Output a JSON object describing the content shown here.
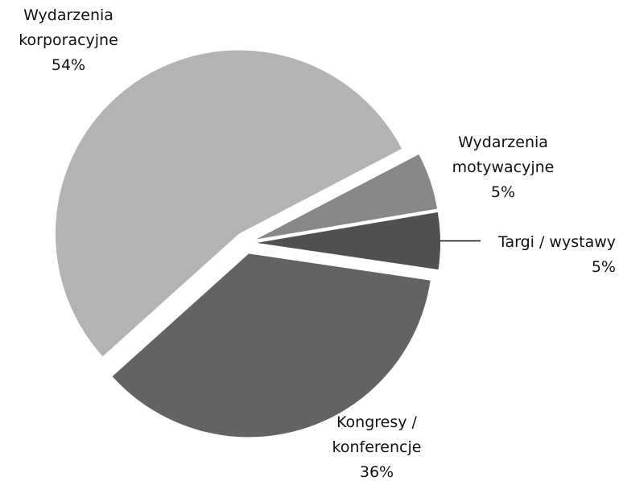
{
  "chart_data": {
    "type": "pie",
    "categories": [
      "Wydarzenia korporacyjne",
      "Wydarzenia motywacyjne",
      "Targi / wystawy",
      "Kongresy / konferencje"
    ],
    "values": [
      54,
      5,
      5,
      36
    ],
    "value_labels": [
      "54%",
      "5%",
      "5%",
      "36%"
    ],
    "colors": [
      "#b3b3b3",
      "#888888",
      "#505050",
      "#636363"
    ]
  }
}
